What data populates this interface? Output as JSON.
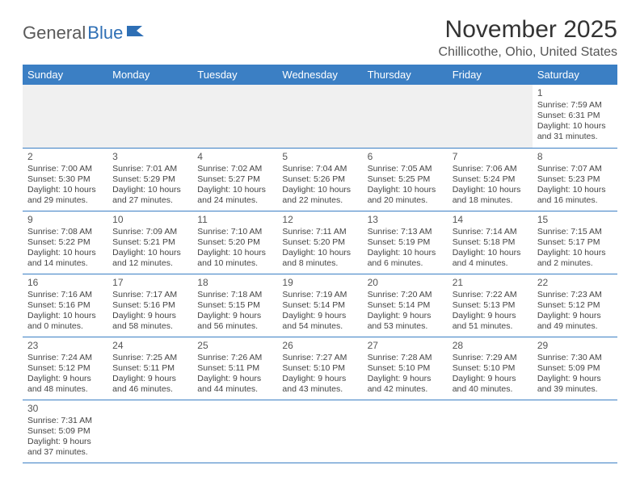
{
  "logo": {
    "text1": "General",
    "text2": "Blue"
  },
  "title": "November 2025",
  "location": "Chillicothe, Ohio, United States",
  "colors": {
    "header_bg": "#3b7fc4",
    "header_text": "#ffffff",
    "border": "#3b7fc4",
    "text": "#444444",
    "title": "#333333",
    "blank_bg": "#f0f0f0"
  },
  "weekdays": [
    "Sunday",
    "Monday",
    "Tuesday",
    "Wednesday",
    "Thursday",
    "Friday",
    "Saturday"
  ],
  "cells": [
    null,
    null,
    null,
    null,
    null,
    null,
    {
      "n": "1",
      "sr": "Sunrise: 7:59 AM",
      "ss": "Sunset: 6:31 PM",
      "dl": "Daylight: 10 hours and 31 minutes."
    },
    {
      "n": "2",
      "sr": "Sunrise: 7:00 AM",
      "ss": "Sunset: 5:30 PM",
      "dl": "Daylight: 10 hours and 29 minutes."
    },
    {
      "n": "3",
      "sr": "Sunrise: 7:01 AM",
      "ss": "Sunset: 5:29 PM",
      "dl": "Daylight: 10 hours and 27 minutes."
    },
    {
      "n": "4",
      "sr": "Sunrise: 7:02 AM",
      "ss": "Sunset: 5:27 PM",
      "dl": "Daylight: 10 hours and 24 minutes."
    },
    {
      "n": "5",
      "sr": "Sunrise: 7:04 AM",
      "ss": "Sunset: 5:26 PM",
      "dl": "Daylight: 10 hours and 22 minutes."
    },
    {
      "n": "6",
      "sr": "Sunrise: 7:05 AM",
      "ss": "Sunset: 5:25 PM",
      "dl": "Daylight: 10 hours and 20 minutes."
    },
    {
      "n": "7",
      "sr": "Sunrise: 7:06 AM",
      "ss": "Sunset: 5:24 PM",
      "dl": "Daylight: 10 hours and 18 minutes."
    },
    {
      "n": "8",
      "sr": "Sunrise: 7:07 AM",
      "ss": "Sunset: 5:23 PM",
      "dl": "Daylight: 10 hours and 16 minutes."
    },
    {
      "n": "9",
      "sr": "Sunrise: 7:08 AM",
      "ss": "Sunset: 5:22 PM",
      "dl": "Daylight: 10 hours and 14 minutes."
    },
    {
      "n": "10",
      "sr": "Sunrise: 7:09 AM",
      "ss": "Sunset: 5:21 PM",
      "dl": "Daylight: 10 hours and 12 minutes."
    },
    {
      "n": "11",
      "sr": "Sunrise: 7:10 AM",
      "ss": "Sunset: 5:20 PM",
      "dl": "Daylight: 10 hours and 10 minutes."
    },
    {
      "n": "12",
      "sr": "Sunrise: 7:11 AM",
      "ss": "Sunset: 5:20 PM",
      "dl": "Daylight: 10 hours and 8 minutes."
    },
    {
      "n": "13",
      "sr": "Sunrise: 7:13 AM",
      "ss": "Sunset: 5:19 PM",
      "dl": "Daylight: 10 hours and 6 minutes."
    },
    {
      "n": "14",
      "sr": "Sunrise: 7:14 AM",
      "ss": "Sunset: 5:18 PM",
      "dl": "Daylight: 10 hours and 4 minutes."
    },
    {
      "n": "15",
      "sr": "Sunrise: 7:15 AM",
      "ss": "Sunset: 5:17 PM",
      "dl": "Daylight: 10 hours and 2 minutes."
    },
    {
      "n": "16",
      "sr": "Sunrise: 7:16 AM",
      "ss": "Sunset: 5:16 PM",
      "dl": "Daylight: 10 hours and 0 minutes."
    },
    {
      "n": "17",
      "sr": "Sunrise: 7:17 AM",
      "ss": "Sunset: 5:16 PM",
      "dl": "Daylight: 9 hours and 58 minutes."
    },
    {
      "n": "18",
      "sr": "Sunrise: 7:18 AM",
      "ss": "Sunset: 5:15 PM",
      "dl": "Daylight: 9 hours and 56 minutes."
    },
    {
      "n": "19",
      "sr": "Sunrise: 7:19 AM",
      "ss": "Sunset: 5:14 PM",
      "dl": "Daylight: 9 hours and 54 minutes."
    },
    {
      "n": "20",
      "sr": "Sunrise: 7:20 AM",
      "ss": "Sunset: 5:14 PM",
      "dl": "Daylight: 9 hours and 53 minutes."
    },
    {
      "n": "21",
      "sr": "Sunrise: 7:22 AM",
      "ss": "Sunset: 5:13 PM",
      "dl": "Daylight: 9 hours and 51 minutes."
    },
    {
      "n": "22",
      "sr": "Sunrise: 7:23 AM",
      "ss": "Sunset: 5:12 PM",
      "dl": "Daylight: 9 hours and 49 minutes."
    },
    {
      "n": "23",
      "sr": "Sunrise: 7:24 AM",
      "ss": "Sunset: 5:12 PM",
      "dl": "Daylight: 9 hours and 48 minutes."
    },
    {
      "n": "24",
      "sr": "Sunrise: 7:25 AM",
      "ss": "Sunset: 5:11 PM",
      "dl": "Daylight: 9 hours and 46 minutes."
    },
    {
      "n": "25",
      "sr": "Sunrise: 7:26 AM",
      "ss": "Sunset: 5:11 PM",
      "dl": "Daylight: 9 hours and 44 minutes."
    },
    {
      "n": "26",
      "sr": "Sunrise: 7:27 AM",
      "ss": "Sunset: 5:10 PM",
      "dl": "Daylight: 9 hours and 43 minutes."
    },
    {
      "n": "27",
      "sr": "Sunrise: 7:28 AM",
      "ss": "Sunset: 5:10 PM",
      "dl": "Daylight: 9 hours and 42 minutes."
    },
    {
      "n": "28",
      "sr": "Sunrise: 7:29 AM",
      "ss": "Sunset: 5:10 PM",
      "dl": "Daylight: 9 hours and 40 minutes."
    },
    {
      "n": "29",
      "sr": "Sunrise: 7:30 AM",
      "ss": "Sunset: 5:09 PM",
      "dl": "Daylight: 9 hours and 39 minutes."
    },
    {
      "n": "30",
      "sr": "Sunrise: 7:31 AM",
      "ss": "Sunset: 5:09 PM",
      "dl": "Daylight: 9 hours and 37 minutes."
    },
    null,
    null,
    null,
    null,
    null,
    null
  ]
}
